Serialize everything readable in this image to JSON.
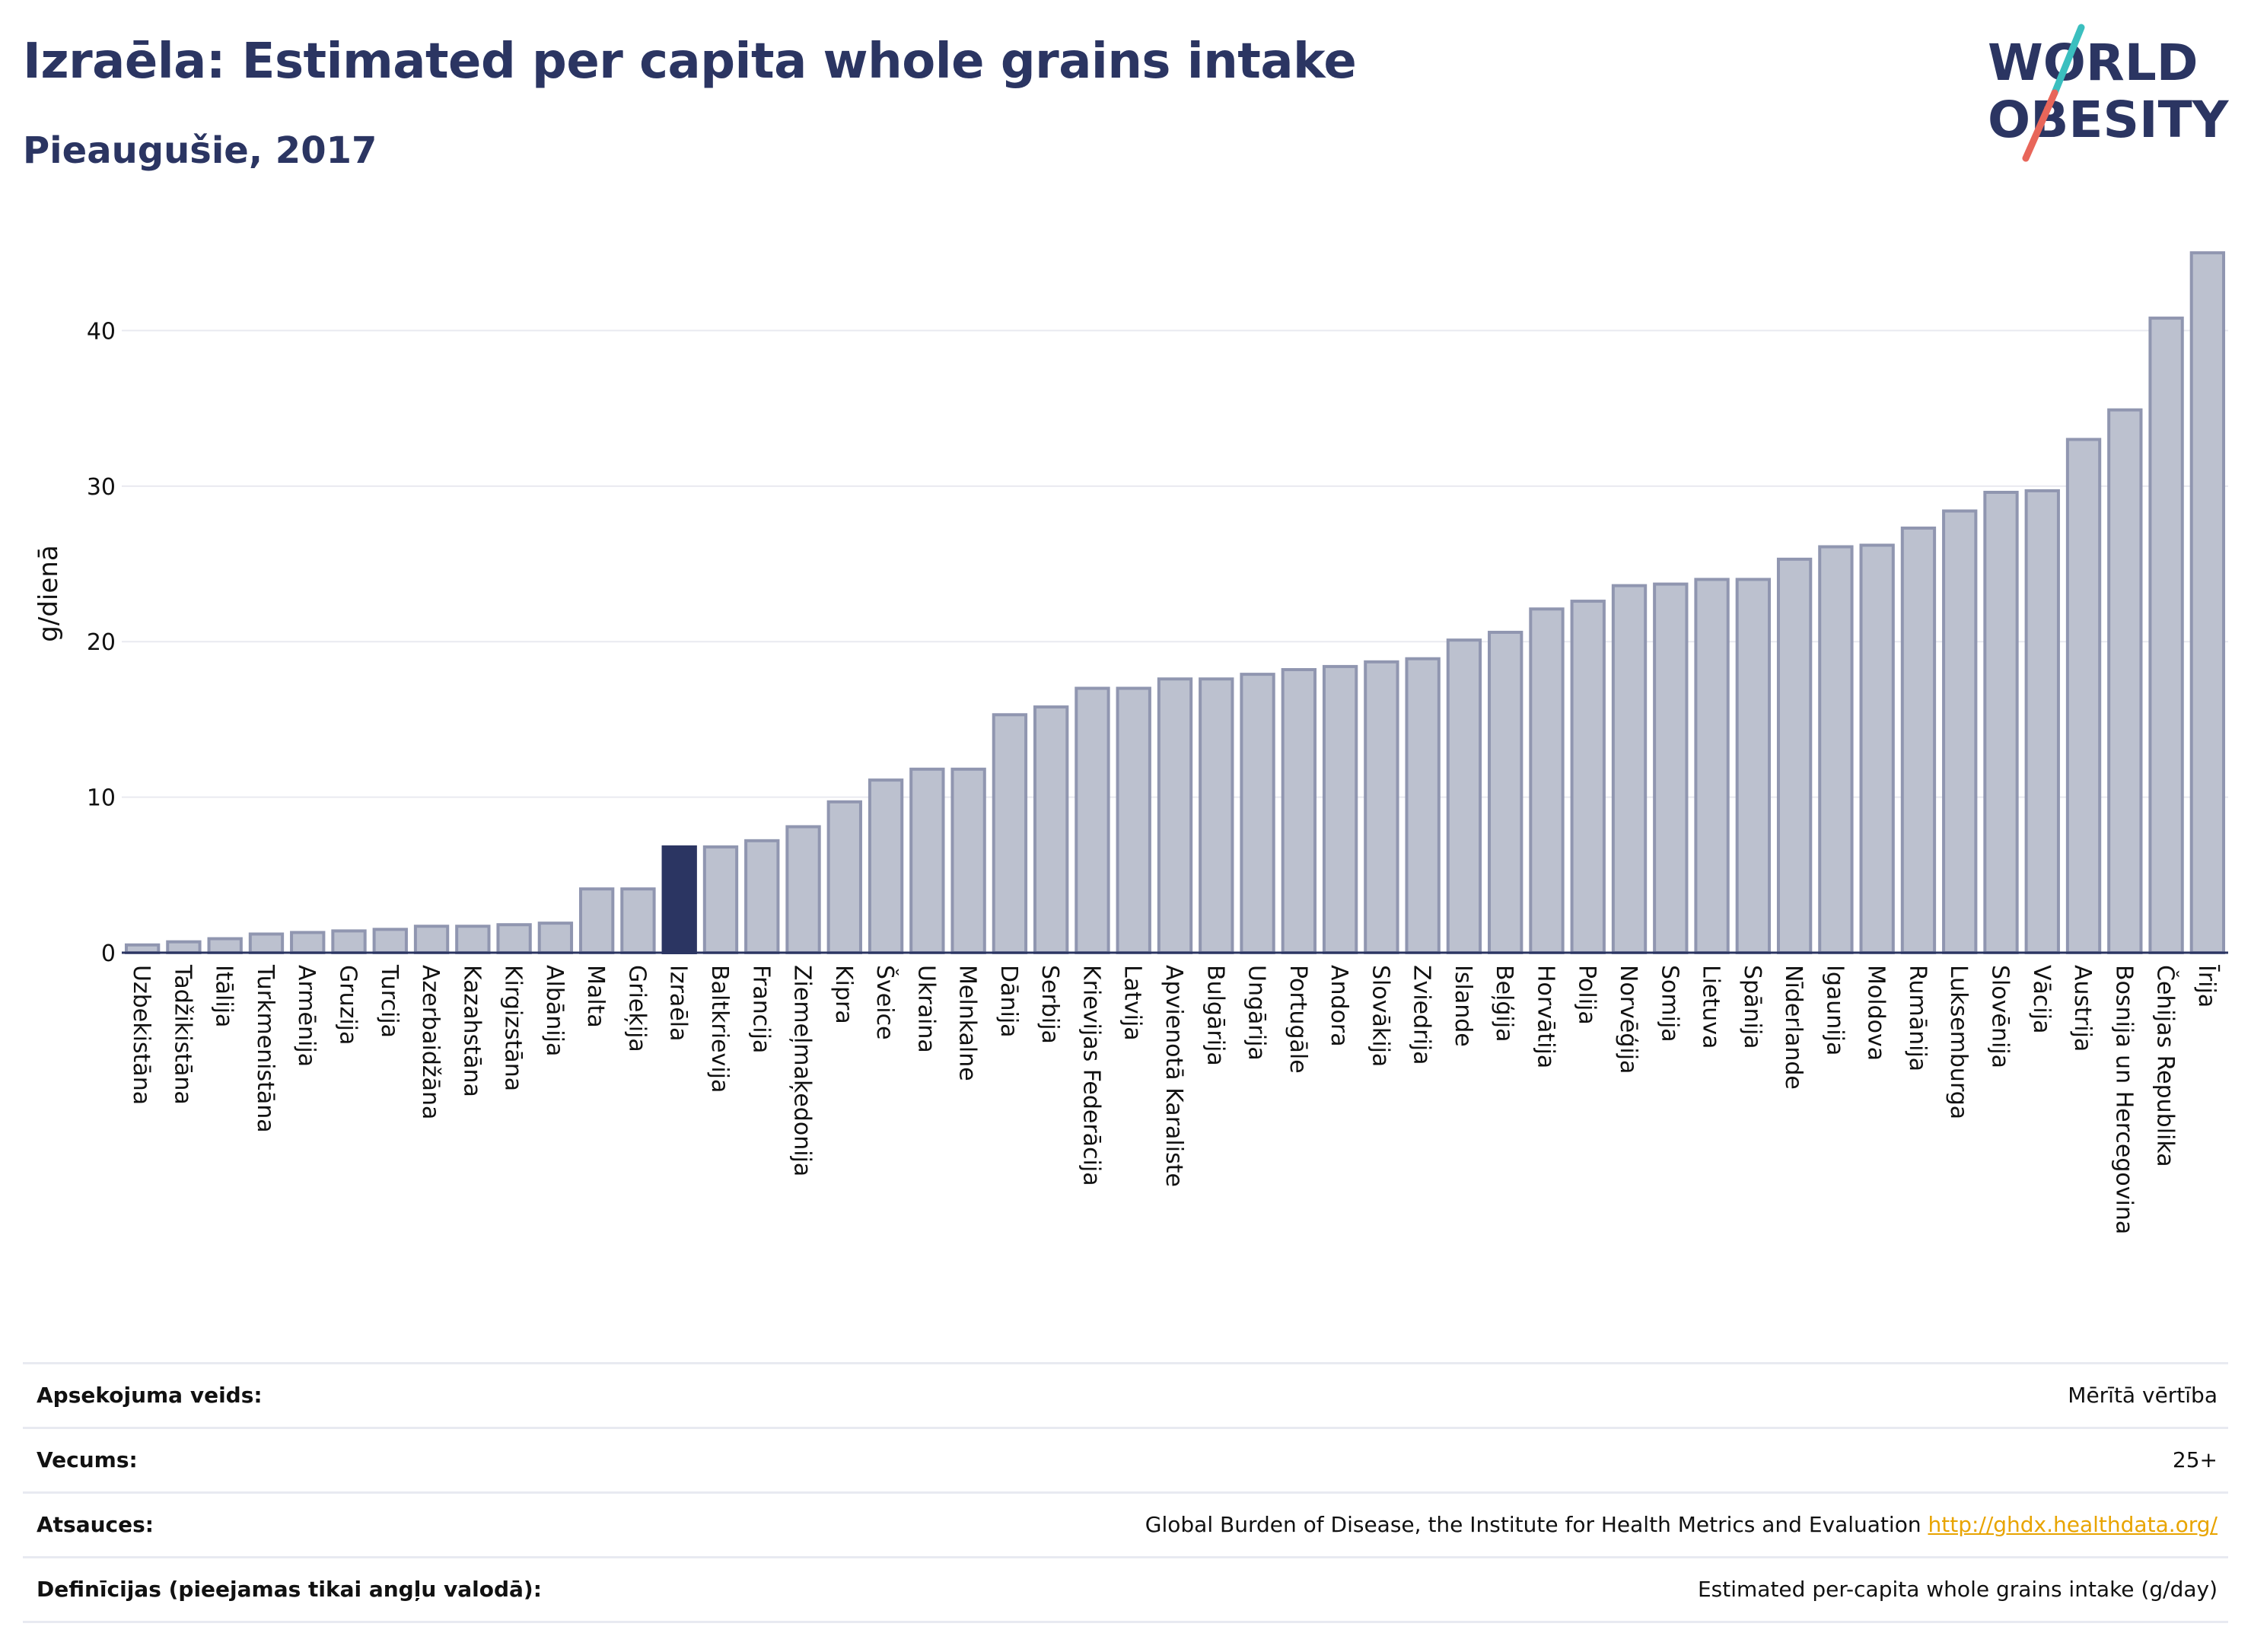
{
  "title": "Izraēla: Estimated per capita whole grains intake",
  "subtitle": "Pieaugušie, 2017",
  "logo": {
    "line1": "WORLD",
    "line2": "OBESITY",
    "colors": {
      "text": "#2b3562",
      "slash_top": "#3bbfbf",
      "slash_bottom": "#e8665a"
    }
  },
  "colors": {
    "bar": "#bcc1cf",
    "bar_edge": "#9096b0",
    "highlight": "#2b3562",
    "grid": "#e9eaf0",
    "axis": "#2b3562"
  },
  "chart_data": {
    "type": "bar",
    "ylabel": "g/dienā",
    "xlabel": "",
    "ylim": [
      0,
      45.5
    ],
    "yticks": [
      0,
      10,
      20,
      30,
      40
    ],
    "grid": true,
    "highlight": "Izraēla",
    "categories": [
      "Uzbekistāna",
      "Tadžikistāna",
      "Itālija",
      "Turkmenistāna",
      "Armēnija",
      "Gruzija",
      "Turcija",
      "Azerbaidžāna",
      "Kazahstāna",
      "Kirgizstāna",
      "Albānija",
      "Malta",
      "Grieķija",
      "Izraēla",
      "Baltkrievija",
      "Francija",
      "Ziemeļmaķedonija",
      "Kipra",
      "Šveice",
      "Ukraina",
      "Melnkalne",
      "Dānija",
      "Serbija",
      "Krievijas Federācija",
      "Latvija",
      "Apvienotā Karaliste",
      "Bulgārija",
      "Ungārija",
      "Portugāle",
      "Andora",
      "Slovākija",
      "Zviedrija",
      "Islande",
      "Beļģija",
      "Horvātija",
      "Polija",
      "Norvēģija",
      "Somija",
      "Lietuva",
      "Spānija",
      "Nīderlande",
      "Igaunija",
      "Moldova",
      "Rumānija",
      "Luksemburga",
      "Slovēnija",
      "Vācija",
      "Austrija",
      "Bosnija un Hercegovina",
      "Čehijas Republika",
      "Īrija"
    ],
    "values": [
      0.5,
      0.7,
      0.9,
      1.2,
      1.3,
      1.4,
      1.5,
      1.7,
      1.7,
      1.8,
      1.9,
      4.1,
      4.1,
      6.8,
      6.8,
      7.2,
      8.1,
      9.7,
      11.1,
      11.8,
      11.8,
      15.3,
      15.8,
      17.0,
      17.0,
      17.6,
      17.6,
      17.9,
      18.2,
      18.4,
      18.7,
      18.9,
      20.1,
      20.6,
      22.1,
      22.6,
      23.6,
      23.7,
      24.0,
      24.0,
      25.3,
      26.1,
      26.2,
      27.3,
      28.4,
      29.6,
      29.7,
      33.0,
      34.9,
      40.8,
      45.0
    ]
  },
  "info": {
    "rows": [
      {
        "label": "Apsekojuma veids:",
        "value": "Mērītā vērtība"
      },
      {
        "label": "Vecums:",
        "value": "25+"
      },
      {
        "label": "Atsauces:",
        "value": "Global Burden of Disease, the Institute for Health Metrics and Evaluation",
        "link": "http://ghdx.healthdata.org/"
      },
      {
        "label": "Definīcijas (pieejamas tikai angļu valodā):",
        "value": "Estimated per-capita whole grains intake (g/day)"
      }
    ]
  }
}
